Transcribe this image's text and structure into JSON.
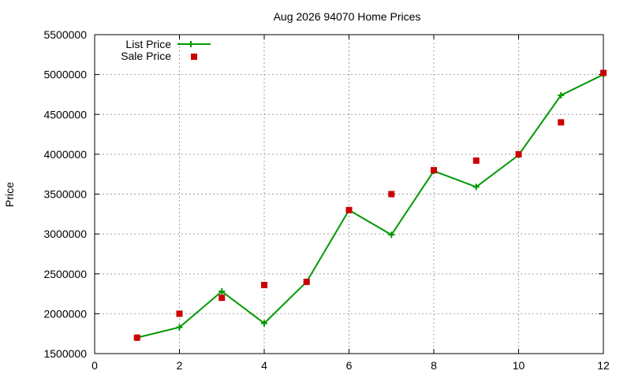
{
  "chart_data": {
    "type": "line",
    "title": "Aug 2026 94070 Home Prices",
    "xlabel": "",
    "ylabel": "Price",
    "xlim": [
      0,
      12
    ],
    "ylim": [
      1500000,
      5500000
    ],
    "xticks": [
      0,
      2,
      4,
      6,
      8,
      10,
      12
    ],
    "yticks": [
      1500000,
      2000000,
      2500000,
      3000000,
      3500000,
      4000000,
      4500000,
      5000000,
      5500000
    ],
    "grid": true,
    "legend_position": "top-left",
    "series": [
      {
        "name": "List Price",
        "style": "line with plus markers",
        "color": "#009900",
        "x": [
          1,
          2,
          3,
          4,
          5,
          6,
          7,
          8,
          9,
          10,
          11,
          12
        ],
        "y": [
          1700000,
          1830000,
          2280000,
          1880000,
          2400000,
          3300000,
          2990000,
          3790000,
          3590000,
          3990000,
          4740000,
          5000000
        ]
      },
      {
        "name": "Sale Price",
        "style": "square markers",
        "color": "#cc0000",
        "x": [
          1,
          2,
          3,
          4,
          5,
          6,
          7,
          8,
          9,
          10,
          11,
          12
        ],
        "y": [
          1700000,
          2000000,
          2200000,
          2360000,
          2400000,
          3300000,
          3500000,
          3800000,
          3920000,
          4000000,
          4400000,
          5020000
        ]
      }
    ]
  }
}
